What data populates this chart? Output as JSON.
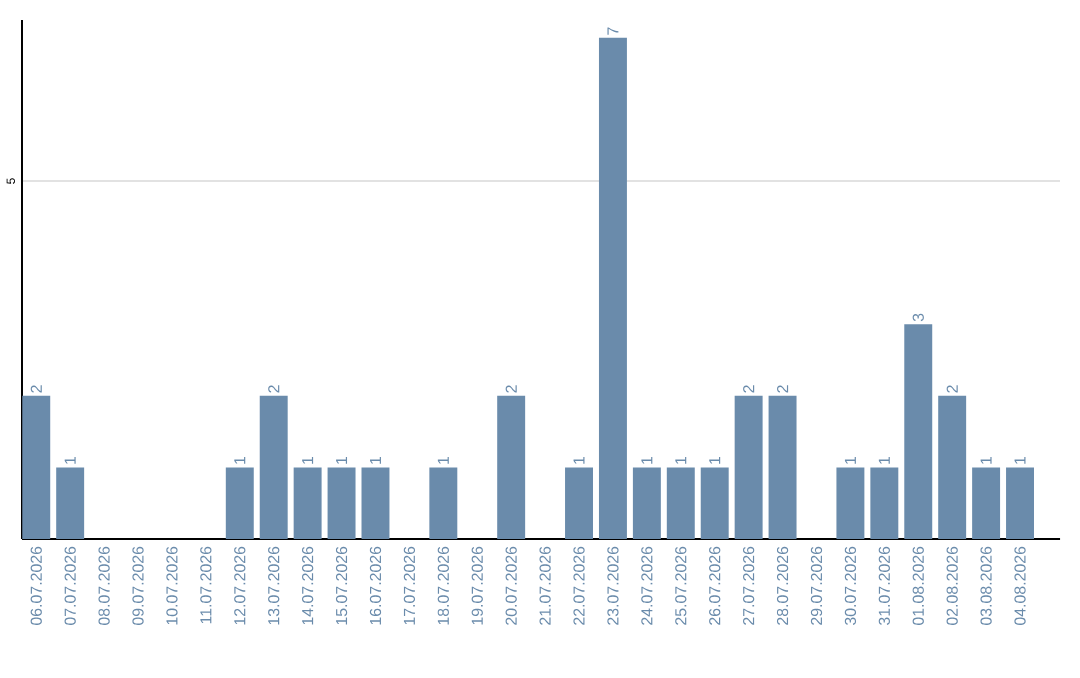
{
  "chart_data": {
    "type": "bar",
    "color": "#6a8bab",
    "categories": [
      "06.07.2026",
      "07.07.2026",
      "08.07.2026",
      "09.07.2026",
      "10.07.2026",
      "11.07.2026",
      "12.07.2026",
      "13.07.2026",
      "14.07.2026",
      "15.07.2026",
      "16.07.2026",
      "17.07.2026",
      "18.07.2026",
      "19.07.2026",
      "20.07.2026",
      "21.07.2026",
      "22.07.2026",
      "23.07.2026",
      "24.07.2026",
      "25.07.2026",
      "26.07.2026",
      "27.07.2026",
      "28.07.2026",
      "29.07.2026",
      "30.07.2026",
      "31.07.2026",
      "01.08.2026",
      "02.08.2026",
      "03.08.2026",
      "04.08.2026"
    ],
    "values": [
      2,
      1,
      null,
      null,
      null,
      null,
      1,
      2,
      1,
      1,
      1,
      null,
      1,
      null,
      2,
      null,
      1,
      7,
      1,
      1,
      1,
      2,
      2,
      null,
      1,
      1,
      3,
      2,
      1,
      1
    ],
    "ylim": [
      0,
      7.25
    ],
    "yticks": [
      5
    ],
    "grid": "y",
    "data_labels": true
  }
}
